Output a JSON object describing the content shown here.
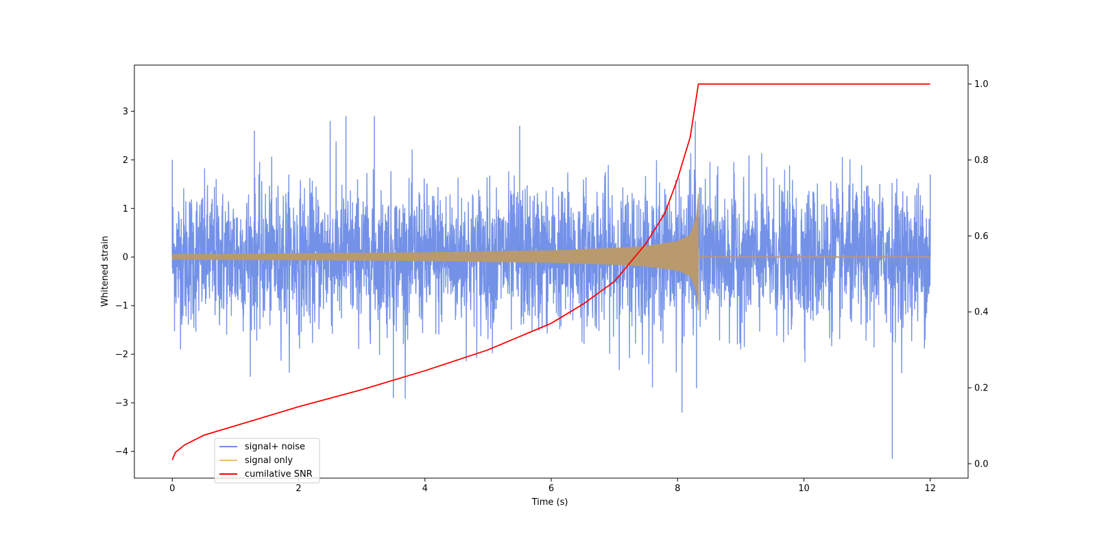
{
  "chart_data": {
    "type": "line",
    "title": "",
    "xlabel": "Time (s)",
    "ylabel": "Whitened strain",
    "y2label": "",
    "xlim": [
      -0.6,
      12.6
    ],
    "ylim": [
      -4.55,
      3.95
    ],
    "y2lim": [
      -0.038,
      1.05
    ],
    "xticks": [
      0,
      2,
      4,
      6,
      8,
      10,
      12
    ],
    "yticks": [
      -4,
      -3,
      -2,
      -1,
      0,
      1,
      2,
      3
    ],
    "y2ticks": [
      0.0,
      0.2,
      0.4,
      0.6,
      0.8,
      1.0
    ],
    "grid": false,
    "legend_position": "lower-left",
    "series": [
      {
        "name": "signal+ noise",
        "color": "#6b8be6",
        "axis": "left",
        "description_points": {
          "x": [
            0,
            1.3,
            2.5,
            2.75,
            3.2,
            3.5,
            5.5,
            8.07,
            8.28,
            8.3,
            11.4,
            12
          ],
          "y": [
            2.0,
            2.6,
            2.8,
            2.9,
            2.9,
            -2.9,
            2.7,
            -3.2,
            2.8,
            -2.7,
            -4.15,
            1.7
          ]
        }
      },
      {
        "name": "signal only",
        "color": "#f5b870",
        "axis": "left",
        "chirp_end": 8.33,
        "x": [
          0,
          2,
          4,
          6,
          7,
          7.5,
          8,
          8.2,
          8.3,
          8.33
        ],
        "amplitude": [
          0.05,
          0.07,
          0.09,
          0.13,
          0.18,
          0.22,
          0.32,
          0.45,
          0.8,
          1.3
        ]
      },
      {
        "name": "cumilative SNR",
        "color": "#ff0000",
        "axis": "right",
        "x": [
          0,
          0.05,
          0.2,
          0.5,
          1,
          2,
          3,
          4,
          5,
          6,
          6.5,
          7,
          7.5,
          7.8,
          8.0,
          8.2,
          8.33,
          12
        ],
        "y": [
          0.01,
          0.03,
          0.05,
          0.075,
          0.1,
          0.15,
          0.195,
          0.245,
          0.3,
          0.37,
          0.42,
          0.48,
          0.58,
          0.66,
          0.75,
          0.86,
          1.0,
          1.0
        ]
      }
    ]
  },
  "legend": {
    "items": [
      {
        "label": "signal+ noise",
        "color": "#6b8be6"
      },
      {
        "label": "signal only",
        "color": "#f5b870"
      },
      {
        "label": "cumilative SNR",
        "color": "#ff0000"
      }
    ]
  }
}
